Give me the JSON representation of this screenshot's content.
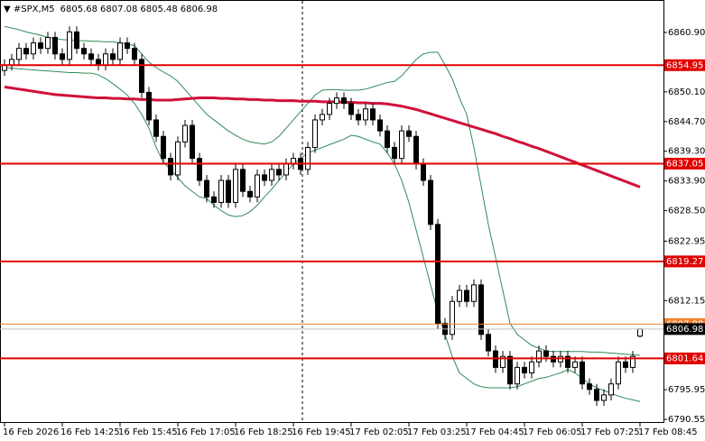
{
  "chart_data": {
    "type": "candlestick",
    "title": "#SPX,M5",
    "categories": [
      "16 Feb 2026",
      null,
      null,
      null,
      null,
      null,
      null,
      null,
      "16 Feb 14:25",
      null,
      null,
      null,
      null,
      null,
      null,
      null,
      "16 Feb 15:45",
      null,
      null,
      null,
      null,
      null,
      null,
      null,
      "16 Feb 17:05",
      null,
      null,
      null,
      null,
      null,
      null,
      null,
      "16 Feb 18:25",
      null,
      null,
      null,
      null,
      null,
      null,
      null,
      "16 Feb 19:45",
      null,
      null,
      null,
      null,
      null,
      null,
      null,
      "17 Feb 02:05",
      null,
      null,
      null,
      null,
      null,
      null,
      null,
      "17 Feb 03:25",
      null,
      null,
      null,
      null,
      null,
      null,
      null,
      "17 Feb 04:45",
      null,
      null,
      null,
      null,
      null,
      null,
      null,
      "17 Feb 06:05",
      null,
      null,
      null,
      null,
      null,
      null,
      null,
      "17 Feb 07:25",
      null,
      null,
      null,
      null,
      null,
      null,
      null,
      "17 Feb 08:45"
    ],
    "open": [
      6854,
      6855,
      6856,
      6858,
      6857,
      6859,
      6858,
      6860,
      6857,
      6856,
      6861,
      6858,
      6857,
      6856,
      6855,
      6857,
      6856,
      6859,
      6858,
      6856,
      6850,
      6845,
      6842,
      6838,
      6835,
      6841,
      6844,
      6838,
      6834,
      6831,
      6830,
      6834,
      6830,
      6836,
      6832,
      6831,
      6835,
      6834,
      6836,
      6835,
      6837,
      6838,
      6836,
      6840,
      6845,
      6846,
      6848,
      6849,
      6848,
      6846,
      6845,
      6847,
      6845,
      6843,
      6840,
      6838,
      6843,
      6842,
      6837,
      6834,
      6826,
      6808,
      6806,
      6812,
      6814,
      6812,
      6815,
      6806,
      6803,
      6800,
      6802,
      6797,
      6800,
      6799,
      6801,
      6803,
      6802,
      6801,
      6802,
      6800,
      6801,
      6797,
      6796,
      6794,
      6795,
      6797,
      6801,
      6800,
      6805.68
    ],
    "high": [
      6856,
      6857,
      6859,
      6859,
      6860,
      6860,
      6861,
      6861,
      6858,
      6862,
      6862,
      6859,
      6858,
      6857,
      6858,
      6858,
      6860,
      6860,
      6859,
      6857,
      6851,
      6846,
      6843,
      6839,
      6842,
      6845,
      6845,
      6839,
      6835,
      6832,
      6835,
      6835,
      6837,
      6837,
      6833,
      6836,
      6836,
      6837,
      6837,
      6838,
      6839,
      6839,
      6841,
      6846,
      6847,
      6849,
      6850,
      6850,
      6849,
      6847,
      6848,
      6848,
      6846,
      6844,
      6841,
      6844,
      6844,
      6843,
      6838,
      6835,
      6827,
      6809,
      6813,
      6815,
      6815,
      6816,
      6816,
      6807,
      6804,
      6803,
      6803,
      6801,
      6801,
      6802,
      6804,
      6804,
      6803,
      6803,
      6803,
      6802,
      6802,
      6798,
      6797,
      6796,
      6798,
      6802,
      6802,
      6803,
      6807.08
    ],
    "low": [
      6853,
      6854,
      6855,
      6856,
      6856,
      6857,
      6857,
      6856,
      6855,
      6855,
      6857,
      6856,
      6855,
      6854,
      6854,
      6855,
      6855,
      6857,
      6855,
      6849,
      6844,
      6841,
      6837,
      6834,
      6834,
      6840,
      6837,
      6833,
      6830,
      6829,
      6829,
      6829,
      6829,
      6831,
      6830,
      6830,
      6833,
      6833,
      6834,
      6834,
      6836,
      6835,
      6835,
      6839,
      6844,
      6845,
      6847,
      6847,
      6845,
      6844,
      6844,
      6844,
      6842,
      6839,
      6837,
      6837,
      6841,
      6836,
      6833,
      6825,
      6807,
      6805,
      6805,
      6811,
      6811,
      6811,
      6805,
      6802,
      6799,
      6799,
      6796,
      6796,
      6798,
      6798,
      6800,
      6801,
      6800,
      6800,
      6799,
      6799,
      6796,
      6795,
      6793,
      6793,
      6794,
      6796,
      6799,
      6799,
      6805.48
    ],
    "close": [
      6855,
      6856,
      6858,
      6857,
      6859,
      6858,
      6860,
      6857,
      6856,
      6861,
      6858,
      6857,
      6856,
      6855,
      6857,
      6856,
      6859,
      6858,
      6856,
      6850,
      6845,
      6842,
      6838,
      6835,
      6841,
      6844,
      6838,
      6834,
      6831,
      6830,
      6834,
      6830,
      6836,
      6832,
      6831,
      6835,
      6834,
      6836,
      6835,
      6837,
      6838,
      6836,
      6840,
      6845,
      6846,
      6848,
      6849,
      6848,
      6846,
      6845,
      6847,
      6845,
      6843,
      6840,
      6838,
      6843,
      6842,
      6837,
      6834,
      6826,
      6808,
      6806,
      6812,
      6814,
      6812,
      6815,
      6806,
      6803,
      6800,
      6802,
      6797,
      6800,
      6799,
      6801,
      6803,
      6802,
      6801,
      6802,
      6800,
      6801,
      6797,
      6796,
      6794,
      6795,
      6797,
      6801,
      6800,
      6802,
      6806.98
    ],
    "lines": [
      {
        "color": "#2e8b57",
        "width": 1,
        "values": [
          6862,
          6861.7,
          6861.4,
          6861,
          6860.7,
          6860.4,
          6860,
          6859.8,
          6859.6,
          6859.5,
          6859.4,
          6859.4,
          6859.3,
          6859.3,
          6859.2,
          6859.2,
          6859,
          6858.8,
          6858.5,
          6857,
          6855.5,
          6854.5,
          6853.7,
          6853,
          6852,
          6850.5,
          6849,
          6847.5,
          6846,
          6845,
          6844,
          6843,
          6842.2,
          6841.5,
          6841,
          6840.8,
          6840.6,
          6841,
          6842,
          6843.5,
          6845,
          6846.5,
          6848,
          6849.5,
          6850.4,
          6850.5,
          6850.5,
          6850.4,
          6850.4,
          6850.4,
          6850.6,
          6851,
          6851.4,
          6851.8,
          6852,
          6853,
          6854.5,
          6856,
          6857,
          6857.3,
          6857.3,
          6855,
          6852.5,
          6849,
          6846,
          6840,
          6833,
          6826,
          6820,
          6814,
          6808,
          6806,
          6805,
          6804,
          6803.5,
          6803,
          6802.9,
          6802.9,
          6802.9,
          6802.9,
          6802.9,
          6802.8,
          6802.8,
          6802.7,
          6802.6,
          6802.5,
          6802.4,
          6802.3,
          6802.2
        ]
      },
      {
        "color": "#2e8b57",
        "width": 1,
        "values": [
          6854.5,
          6854.4,
          6854.3,
          6854.2,
          6854.1,
          6854,
          6853.9,
          6853.8,
          6853.7,
          6853.6,
          6853.6,
          6853.5,
          6853.5,
          6853.2,
          6852.5,
          6851.6,
          6850.6,
          6849.5,
          6848,
          6846,
          6843.5,
          6840,
          6837.3,
          6836,
          6834.5,
          6833,
          6832,
          6831,
          6830.7,
          6829.5,
          6828.5,
          6827.7,
          6827.4,
          6827.6,
          6828.3,
          6829.5,
          6831,
          6832.4,
          6834,
          6835.5,
          6837,
          6838,
          6839,
          6839.5,
          6840,
          6840.5,
          6841,
          6841.5,
          6842.2,
          6842,
          6841.5,
          6841,
          6840.6,
          6839,
          6837,
          6834,
          6830,
          6825,
          6820,
          6815,
          6810,
          6806,
          6802,
          6799,
          6798,
          6797,
          6796.5,
          6796.3,
          6796.3,
          6796.3,
          6796.3,
          6796.5,
          6797,
          6797.5,
          6798,
          6798.2,
          6798.6,
          6799,
          6799.6,
          6799,
          6798,
          6797,
          6796.3,
          6795.8,
          6795.3,
          6794.8,
          6794.4,
          6794.1,
          6793.8
        ]
      },
      {
        "color": "#d0103a",
        "width": 3,
        "values": [
          6851,
          6850.8,
          6850.6,
          6850.4,
          6850.2,
          6850,
          6849.8,
          6849.6,
          6849.5,
          6849.4,
          6849.3,
          6849.2,
          6849.1,
          6849,
          6849,
          6848.9,
          6848.9,
          6848.8,
          6848.8,
          6848.7,
          6848.7,
          6848.6,
          6848.6,
          6848.6,
          6848.7,
          6848.8,
          6848.9,
          6849,
          6849,
          6849,
          6848.9,
          6848.9,
          6848.8,
          6848.8,
          6848.7,
          6848.7,
          6848.6,
          6848.6,
          6848.5,
          6848.5,
          6848.5,
          6848.4,
          6848.4,
          6848.4,
          6848.3,
          6848.3,
          6848.3,
          6848.2,
          6848.2,
          6848.1,
          6848.1,
          6848,
          6848,
          6847.9,
          6847.7,
          6847.5,
          6847.2,
          6846.9,
          6846.5,
          6846.1,
          6845.7,
          6845.3,
          6844.9,
          6844.5,
          6844.1,
          6843.7,
          6843.3,
          6842.9,
          6842.5,
          6842,
          6841.6,
          6841.1,
          6840.7,
          6840.2,
          6839.8,
          6839.3,
          6838.8,
          6838.3,
          6837.8,
          6837.3,
          6836.8,
          6836.3,
          6835.8,
          6835.3,
          6834.8,
          6834.3,
          6833.8,
          6833.3,
          6832.8
        ]
      }
    ],
    "levels": [
      6854.95,
      6837.05,
      6819.27,
      6801.64
    ],
    "level_color": "#e00000",
    "ask": 6807.88,
    "ask_color": "#f08030",
    "ylim": [
      6789.9,
      6866.8
    ],
    "yticks": [
      {
        "value": 6860.9,
        "label": "6860.90"
      },
      {
        "value": 6850.1,
        "label": "6850.10"
      },
      {
        "value": 6844.7,
        "label": "6844.70"
      },
      {
        "value": 6839.3,
        "label": "6839.30"
      },
      {
        "value": 6833.9,
        "label": "6833.90"
      },
      {
        "value": 6828.5,
        "label": "6828.50"
      },
      {
        "value": 6822.95,
        "label": "6822.95"
      },
      {
        "value": 6812.15,
        "label": "6812.15"
      },
      {
        "value": 6795.95,
        "label": "6795.95"
      },
      {
        "value": 6790.55,
        "label": "6790.55"
      }
    ]
  }
}
